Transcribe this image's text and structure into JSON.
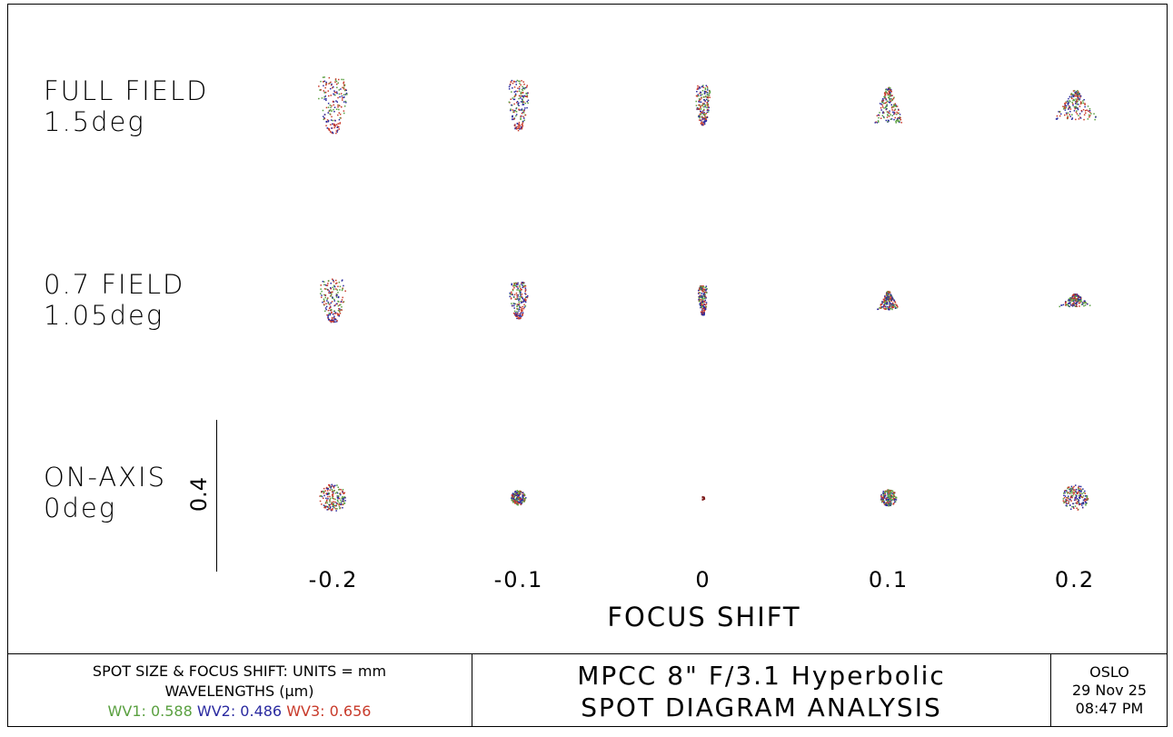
{
  "chart_data": {
    "type": "scatter",
    "title": "MPCC 8\" F/3.1 Hyperbolic",
    "subtitle": "SPOT DIAGRAM ANALYSIS",
    "xlabel": "FOCUS SHIFT",
    "x_ticks": [
      "-0.2",
      "-0.1",
      "0",
      "0.1",
      "0.2"
    ],
    "focus_shifts": [
      -0.2,
      -0.1,
      0,
      0.1,
      0.2
    ],
    "fields": [
      {
        "name": "FULL FIELD",
        "angle": "1.5deg"
      },
      {
        "name": "0.7 FIELD",
        "angle": "1.05deg"
      },
      {
        "name": "ON-AXIS",
        "angle": "0deg"
      }
    ],
    "scale_bar": {
      "value": 0.4,
      "label": "0.4"
    },
    "wavelength_colors": {
      "WV1": "#5aa040",
      "WV2": "#2a2aa0",
      "WV3": "#c83a2a"
    }
  },
  "footer": {
    "units": "SPOT SIZE & FOCUS SHIFT: UNITS = mm",
    "wavelengths_title": "WAVELENGTHS (μm)",
    "wv1": "WV1: 0.588",
    "wv2": "WV2: 0.486",
    "wv3": "WV3: 0.656",
    "program": "OSLO",
    "date": "29 Nov 25",
    "time": "08:47 PM"
  }
}
